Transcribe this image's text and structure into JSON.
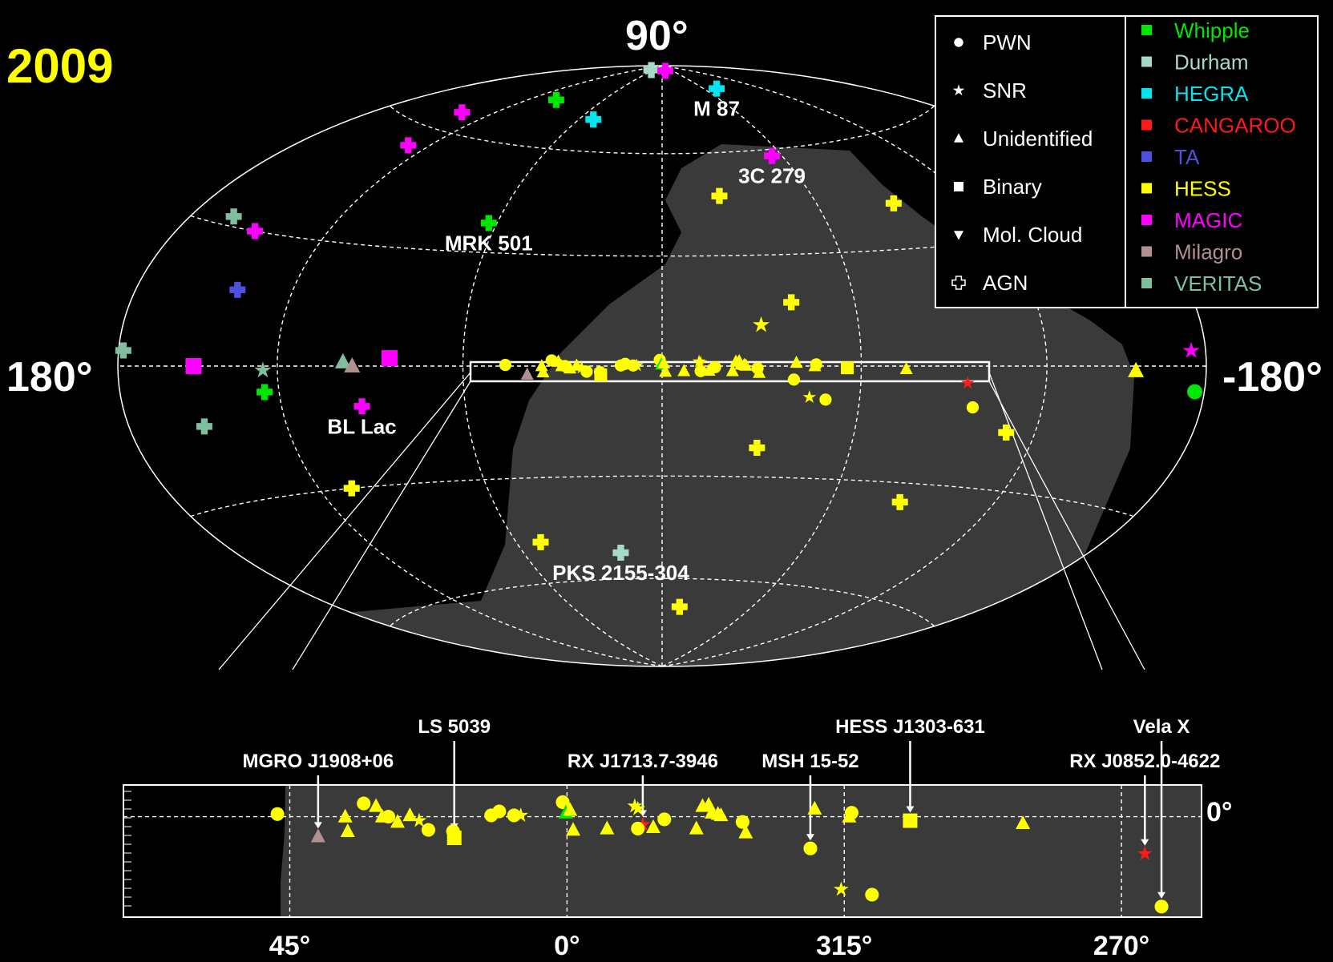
{
  "chart_data": {
    "type": "scatter",
    "year": "2009",
    "projection": "hammer-aitoff galactic sky map",
    "sky_axis_labels": {
      "top": "90°",
      "left": "180°",
      "right": "-180°"
    },
    "strip_axis_labels": {
      "x_ticks": [
        "45°",
        "0°",
        "315°",
        "270°"
      ],
      "y_tick": "0°"
    },
    "legend_types": [
      {
        "name": "PWN",
        "shape": "circle"
      },
      {
        "name": "SNR",
        "shape": "star"
      },
      {
        "name": "Unidentified",
        "shape": "triangle"
      },
      {
        "name": "Binary",
        "shape": "square"
      },
      {
        "name": "Mol. Cloud",
        "shape": "triangle-down"
      },
      {
        "name": "AGN",
        "shape": "cross"
      }
    ],
    "legend_experiments": [
      {
        "name": "Whipple",
        "color": "#00e600"
      },
      {
        "name": "Durham",
        "color": "#a8d8c8"
      },
      {
        "name": "HEGRA",
        "color": "#00e5ee"
      },
      {
        "name": "CANGAROO",
        "color": "#ff1a1a"
      },
      {
        "name": "TA",
        "color": "#5050e0"
      },
      {
        "name": "HESS",
        "color": "#ffff00"
      },
      {
        "name": "MAGIC",
        "color": "#ff00ff"
      },
      {
        "name": "Milagro",
        "color": "#b09090"
      },
      {
        "name": "VERITAS",
        "color": "#7fbfa0"
      }
    ],
    "sky_labels": [
      "M 87",
      "3C 279",
      "MRK 501",
      "BL Lac",
      "PKS 2155-304"
    ],
    "strip_labels": [
      "MGRO J1908+06",
      "LS 5039",
      "RX J1713.7-3946",
      "MSH 15-52",
      "HESS J1303-631",
      "RX J0852.0-4622",
      "Vela X"
    ],
    "sky_points": [
      {
        "l": 70,
        "b": 88,
        "type": "AGN",
        "exp": "Durham"
      },
      {
        "l": -20,
        "b": 88,
        "type": "AGN",
        "exp": "MAGIC"
      },
      {
        "l": -76,
        "b": 80,
        "type": "AGN",
        "exp": "HEGRA",
        "label": "M 87"
      },
      {
        "l": -55,
        "b": 58,
        "type": "AGN",
        "exp": "MAGIC",
        "label": "3C 279"
      },
      {
        "l": 100,
        "b": 74,
        "type": "AGN",
        "exp": "Whipple"
      },
      {
        "l": 50,
        "b": 70,
        "type": "AGN",
        "exp": "HEGRA"
      },
      {
        "l": 138,
        "b": 65,
        "type": "AGN",
        "exp": "MAGIC"
      },
      {
        "l": 130,
        "b": 55,
        "type": "AGN",
        "exp": "MAGIC"
      },
      {
        "l": 63,
        "b": 38,
        "type": "AGN",
        "exp": "Whipple",
        "label": "MRK 501"
      },
      {
        "l": -23,
        "b": 47,
        "type": "AGN",
        "exp": "HESS"
      },
      {
        "l": -90,
        "b": 42,
        "type": "AGN",
        "exp": "HESS"
      },
      {
        "l": 162,
        "b": 32,
        "type": "AGN",
        "exp": "VERITAS"
      },
      {
        "l": 148,
        "b": 30,
        "type": "AGN",
        "exp": "MAGIC"
      },
      {
        "l": 140,
        "b": 17,
        "type": "AGN",
        "exp": "TA"
      },
      {
        "l": -40,
        "b": 17,
        "type": "AGN",
        "exp": "HESS"
      },
      {
        "l": -30,
        "b": 11,
        "type": "SNR",
        "exp": "HESS"
      },
      {
        "l": 178,
        "b": 3,
        "type": "AGN",
        "exp": "VERITAS"
      },
      {
        "l": -174,
        "b": 3,
        "type": "SNR",
        "exp": "MAGIC"
      },
      {
        "l": -152,
        "b": -1,
        "type": "Unidentified",
        "exp": "HESS"
      },
      {
        "l": -176,
        "b": -5,
        "type": "PWN",
        "exp": "Whipple"
      },
      {
        "l": 150,
        "b": 0,
        "type": "Binary",
        "exp": "MAGIC"
      },
      {
        "l": 125,
        "b": -1,
        "type": "SNR",
        "exp": "VERITAS"
      },
      {
        "l": 98,
        "b": 1,
        "type": "Unidentified",
        "exp": "VERITAS"
      },
      {
        "l": 95,
        "b": 0,
        "type": "Unidentified",
        "exp": "Milagro"
      },
      {
        "l": 83,
        "b": 2,
        "type": "Binary",
        "exp": "MAGIC"
      },
      {
        "l": 125,
        "b": -6,
        "type": "AGN",
        "exp": "Whipple"
      },
      {
        "l": 93,
        "b": -10,
        "type": "AGN",
        "exp": "MAGIC",
        "label": "BL Lac"
      },
      {
        "l": 150,
        "b": -13,
        "type": "AGN",
        "exp": "VERITAS"
      },
      {
        "l": 108,
        "b": -30,
        "type": "AGN",
        "exp": "HESS"
      },
      {
        "l": -30,
        "b": -22,
        "type": "AGN",
        "exp": "HESS"
      },
      {
        "l": -110,
        "b": -16,
        "type": "AGN",
        "exp": "HESS"
      },
      {
        "l": -85,
        "b": -35,
        "type": "AGN",
        "exp": "HESS"
      },
      {
        "l": 18,
        "b": -52,
        "type": "AGN",
        "exp": "Durham",
        "label": "PKS 2155-304"
      },
      {
        "l": 50,
        "b": -48,
        "type": "AGN",
        "exp": "HESS"
      },
      {
        "l": -12,
        "b": -69,
        "type": "AGN",
        "exp": "HESS"
      }
    ],
    "strip_points": [
      {
        "l": 47,
        "b": 0.2,
        "type": "PWN",
        "exp": "HESS"
      },
      {
        "l": 40.4,
        "b": -1.5,
        "type": "Unidentified",
        "exp": "Milagro",
        "label": "MGRO J1908+06"
      },
      {
        "l": 36,
        "b": 0.0,
        "type": "Unidentified",
        "exp": "HESS"
      },
      {
        "l": 35.6,
        "b": -1.1,
        "type": "Unidentified",
        "exp": "HESS"
      },
      {
        "l": 33,
        "b": 1.0,
        "type": "PWN",
        "exp": "HESS"
      },
      {
        "l": 31,
        "b": 0.8,
        "type": "Unidentified",
        "exp": "HESS"
      },
      {
        "l": 30,
        "b": 0.0,
        "type": "Unidentified",
        "exp": "HESS"
      },
      {
        "l": 29,
        "b": 0.0,
        "type": "PWN",
        "exp": "HESS"
      },
      {
        "l": 27.5,
        "b": -0.4,
        "type": "Unidentified",
        "exp": "HESS"
      },
      {
        "l": 25.5,
        "b": 0.1,
        "type": "Unidentified",
        "exp": "HESS"
      },
      {
        "l": 24,
        "b": -0.3,
        "type": "SNR",
        "exp": "HESS"
      },
      {
        "l": 22.5,
        "b": -1.0,
        "type": "PWN",
        "exp": "HESS"
      },
      {
        "l": 18.5,
        "b": -1.1,
        "type": "PWN",
        "exp": "HESS"
      },
      {
        "l": 18.3,
        "b": -1.6,
        "type": "Binary",
        "exp": "HESS",
        "label": "LS 5039"
      },
      {
        "l": 12.3,
        "b": 0.1,
        "type": "PWN",
        "exp": "HESS"
      },
      {
        "l": 11,
        "b": 0.4,
        "type": "PWN",
        "exp": "HESS"
      },
      {
        "l": 8.6,
        "b": 0.1,
        "type": "PWN",
        "exp": "HESS"
      },
      {
        "l": 7.5,
        "b": 0.1,
        "type": "SNR",
        "exp": "HESS"
      },
      {
        "l": 0.7,
        "b": 1.1,
        "type": "PWN",
        "exp": "HESS"
      },
      {
        "l": 0.2,
        "b": 0.3,
        "type": "Unidentified",
        "exp": "Whipple"
      },
      {
        "l": -0.5,
        "b": 0.5,
        "type": "Unidentified",
        "exp": "HESS"
      },
      {
        "l": -1,
        "b": -1.0,
        "type": "Unidentified",
        "exp": "HESS"
      },
      {
        "l": -6.5,
        "b": -0.9,
        "type": "Unidentified",
        "exp": "HESS"
      },
      {
        "l": -11.5,
        "b": 0.6,
        "type": "SNR",
        "exp": "HESS"
      },
      {
        "l": -11,
        "b": 0.8,
        "type": "SNR",
        "exp": "HESS"
      },
      {
        "l": -12.3,
        "b": -0.6,
        "type": "SNR",
        "exp": "CANGAROO",
        "label": "RX J1713.7-3946"
      },
      {
        "l": -11.5,
        "b": -0.9,
        "type": "PWN",
        "exp": "HESS"
      },
      {
        "l": -14,
        "b": -0.8,
        "type": "Unidentified",
        "exp": "HESS"
      },
      {
        "l": -15.8,
        "b": -0.2,
        "type": "PWN",
        "exp": "HESS"
      },
      {
        "l": -21,
        "b": -0.9,
        "type": "Unidentified",
        "exp": "HESS"
      },
      {
        "l": -22,
        "b": 0.8,
        "type": "Unidentified",
        "exp": "HESS"
      },
      {
        "l": -23,
        "b": 0.9,
        "type": "Unidentified",
        "exp": "HESS"
      },
      {
        "l": -23.5,
        "b": 0.3,
        "type": "Unidentified",
        "exp": "HESS"
      },
      {
        "l": -24.5,
        "b": 0.2,
        "type": "Unidentified",
        "exp": "HESS"
      },
      {
        "l": -25,
        "b": 0.1,
        "type": "Unidentified",
        "exp": "HESS"
      },
      {
        "l": -28.5,
        "b": -0.4,
        "type": "PWN",
        "exp": "HESS"
      },
      {
        "l": -29,
        "b": -1.2,
        "type": "Unidentified",
        "exp": "HESS"
      },
      {
        "l": -39.5,
        "b": -2.4,
        "type": "PWN",
        "exp": "HESS",
        "label": "MSH 15-52"
      },
      {
        "l": -40.2,
        "b": 0.6,
        "type": "Unidentified",
        "exp": "HESS"
      },
      {
        "l": -44.5,
        "b": -5.5,
        "type": "SNR",
        "exp": "HESS"
      },
      {
        "l": -45.8,
        "b": 0.0,
        "type": "Unidentified",
        "exp": "HESS"
      },
      {
        "l": -46.2,
        "b": 0.3,
        "type": "PWN",
        "exp": "HESS"
      },
      {
        "l": -49.5,
        "b": -5.9,
        "type": "PWN",
        "exp": "HESS"
      },
      {
        "l": -55.7,
        "b": -0.3,
        "type": "Binary",
        "exp": "HESS",
        "label": "HESS J1303-631"
      },
      {
        "l": -74,
        "b": -0.5,
        "type": "Unidentified",
        "exp": "HESS"
      },
      {
        "l": -93.8,
        "b": -2.8,
        "type": "SNR",
        "exp": "CANGAROO",
        "label": "RX J0852.0-4622"
      },
      {
        "l": -96.5,
        "b": -6.8,
        "type": "PWN",
        "exp": "HESS",
        "label": "Vela X"
      }
    ]
  }
}
